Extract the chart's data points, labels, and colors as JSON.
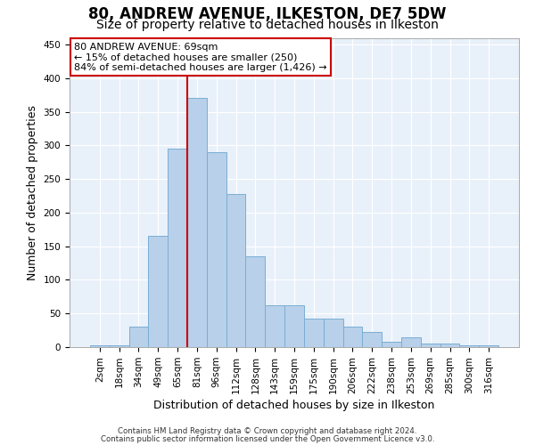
{
  "title1": "80, ANDREW AVENUE, ILKESTON, DE7 5DW",
  "title2": "Size of property relative to detached houses in Ilkeston",
  "xlabel": "Distribution of detached houses by size in Ilkeston",
  "ylabel": "Number of detached properties",
  "categories": [
    "2sqm",
    "18sqm",
    "34sqm",
    "49sqm",
    "65sqm",
    "81sqm",
    "96sqm",
    "112sqm",
    "128sqm",
    "143sqm",
    "159sqm",
    "175sqm",
    "190sqm",
    "206sqm",
    "222sqm",
    "238sqm",
    "253sqm",
    "269sqm",
    "285sqm",
    "300sqm",
    "316sqm"
  ],
  "values": [
    2,
    2,
    30,
    165,
    295,
    370,
    290,
    228,
    135,
    62,
    62,
    43,
    42,
    30,
    23,
    8,
    15,
    5,
    5,
    2,
    2
  ],
  "bar_color": "#b8d0ea",
  "bar_edge_color": "#7aaed4",
  "annotation_text_line1": "80 ANDREW AVENUE: 69sqm",
  "annotation_text_line2": "← 15% of detached houses are smaller (250)",
  "annotation_text_line3": "84% of semi-detached houses are larger (1,426) →",
  "annotation_box_color": "#ffffff",
  "annotation_box_edge": "#cc0000",
  "vline_color": "#cc0000",
  "vline_x": 4.5,
  "ylim": [
    0,
    460
  ],
  "yticks": [
    0,
    50,
    100,
    150,
    200,
    250,
    300,
    350,
    400,
    450
  ],
  "footnote1": "Contains HM Land Registry data © Crown copyright and database right 2024.",
  "footnote2": "Contains public sector information licensed under the Open Government Licence v3.0.",
  "bg_color": "#e8f0fa",
  "fig_bg_color": "#ffffff",
  "title1_fontsize": 12,
  "title2_fontsize": 10,
  "ylabel_fontsize": 9,
  "xlabel_fontsize": 9,
  "tick_fontsize": 7.5,
  "annot_fontsize": 8
}
